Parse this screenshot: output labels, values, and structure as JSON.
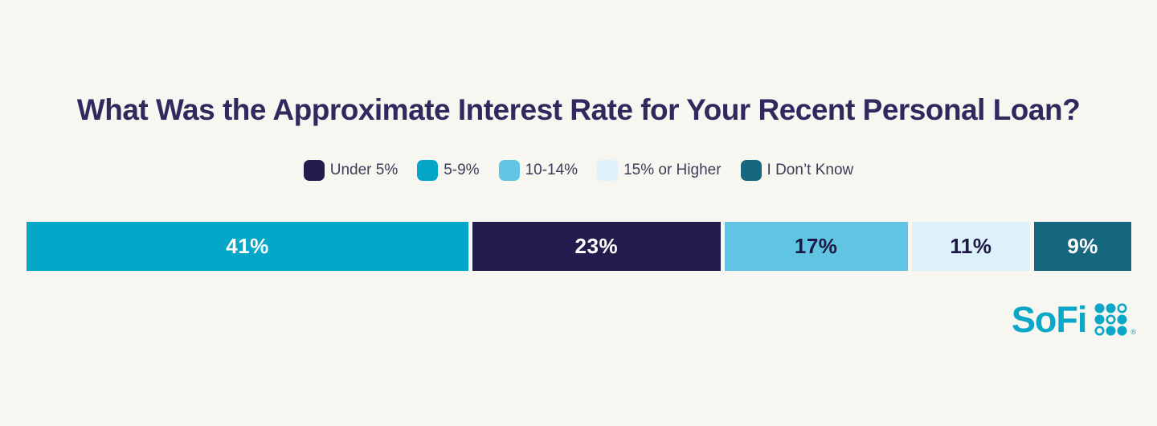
{
  "page": {
    "background_color": "#f8f6f1"
  },
  "title": "What Was the Approximate Interest Rate for Your Recent Personal Loan?",
  "title_color": "#2f2a5e",
  "legend": {
    "position": "top-center",
    "items": [
      {
        "label": "Under 5%",
        "color": "#231d4e"
      },
      {
        "label": "5-9%",
        "color": "#05a7c9"
      },
      {
        "label": "10-14%",
        "color": "#5fc5e2"
      },
      {
        "label": "15% or Higher",
        "color": "#dcf1fa"
      },
      {
        "label": "I Don’t Know",
        "color": "#15677f"
      }
    ]
  },
  "chart_data": {
    "type": "bar",
    "variant": "horizontal-stacked",
    "title": "What Was the Approximate Interest Rate for Your Recent Personal Loan?",
    "categories": [
      "Under 5%",
      "5-9%",
      "10-14%",
      "15% or Higher",
      "I Don’t Know"
    ],
    "values_by_category": {
      "Under 5%": 23,
      "5-9%": 41,
      "10-14%": 17,
      "15% or Higher": 11,
      "I Don’t Know": 9
    },
    "segments": [
      {
        "category": "5-9%",
        "value": 41,
        "label": "41%",
        "color": "#05a7c9",
        "label_color": "#ffffff"
      },
      {
        "category": "Under 5%",
        "value": 23,
        "label": "23%",
        "color": "#231d4e",
        "label_color": "#ffffff"
      },
      {
        "category": "10-14%",
        "value": 17,
        "label": "17%",
        "color": "#5fc5e2",
        "label_color": "#1d1844"
      },
      {
        "category": "15% or Higher",
        "value": 11,
        "label": "11%",
        "color": "#dcf1fa",
        "label_color": "#1d1844"
      },
      {
        "category": "I Don’t Know",
        "value": 9,
        "label": "9%",
        "color": "#15677f",
        "label_color": "#ffffff"
      }
    ],
    "xlim": [
      0,
      101
    ],
    "grid": false,
    "axis_labels_visible": false,
    "legend_position": "top-center"
  },
  "logo": {
    "text": "SoFi",
    "mark": "®",
    "color": "#0ba7c9",
    "dots": [
      [
        1,
        1,
        0
      ],
      [
        1,
        0,
        1
      ],
      [
        0,
        1,
        1
      ]
    ]
  }
}
